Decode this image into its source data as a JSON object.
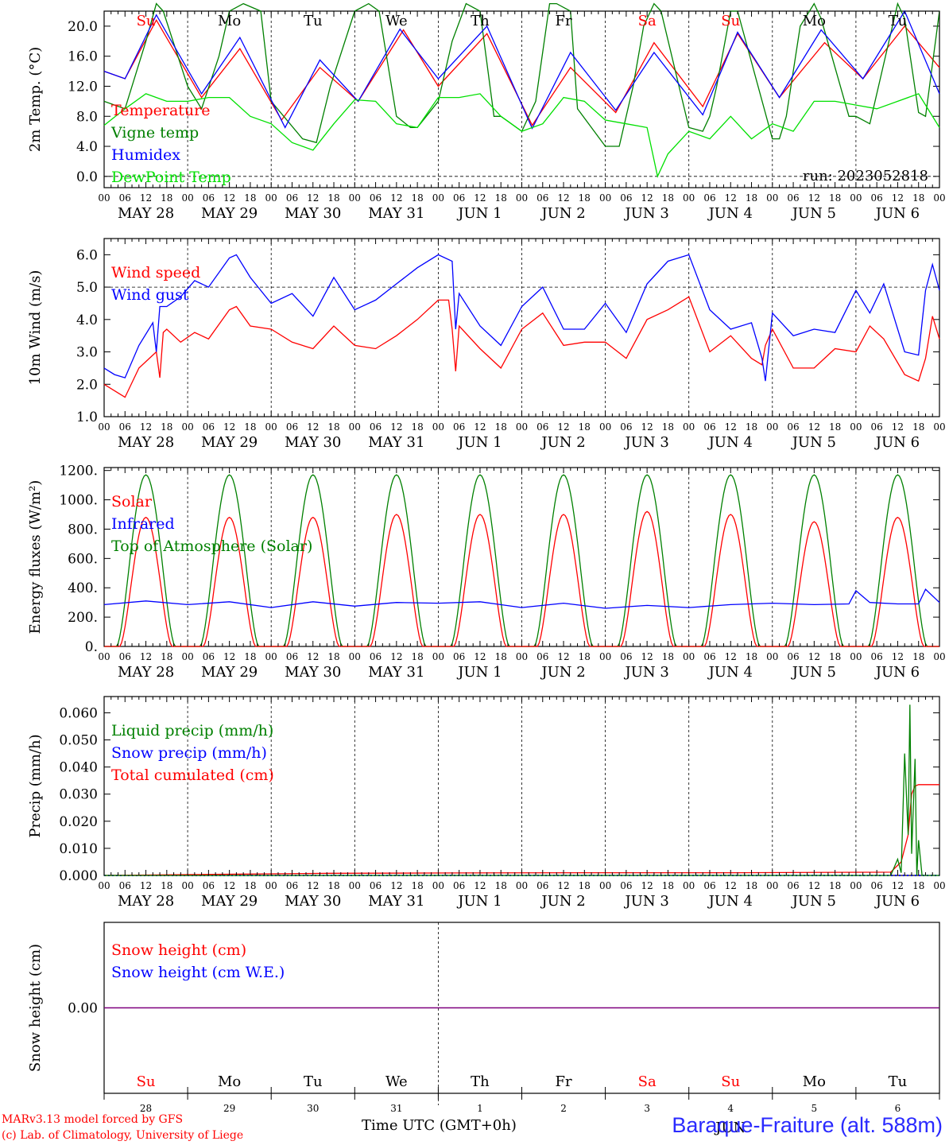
{
  "run_label": "run: 2023052818",
  "footer": {
    "model": "MARv3.13 model forced by GFS",
    "lab": "(c) Lab. of Climatology, University of Liege",
    "time_axis": "Time UTC (GMT+0h)",
    "station": "Baraque-Fraiture (alt. 588m)",
    "month": "JUN"
  },
  "days": {
    "weekday_labels": [
      "Su",
      "Mo",
      "Tu",
      "We",
      "Th",
      "Fr",
      "Sa",
      "Su",
      "Mo",
      "Tu"
    ],
    "weekend_flags": [
      true,
      false,
      false,
      false,
      false,
      false,
      true,
      true,
      false,
      false
    ],
    "date_labels": [
      "MAY 28",
      "MAY 29",
      "MAY 30",
      "MAY 31",
      "JUN  1",
      "JUN  2",
      "JUN  3",
      "JUN  4",
      "JUN  5",
      "JUN  6"
    ],
    "day_numbers": [
      "28",
      "29",
      "30",
      "31",
      "1",
      "2",
      "3",
      "4",
      "5",
      "6"
    ],
    "hour_ticks": [
      "00",
      "06",
      "12",
      "18"
    ],
    "end_hour": "00"
  },
  "colors": {
    "red": "#ff0000",
    "green_dark": "#008000",
    "blue": "#0000ff",
    "green_light": "#00e000",
    "purple": "#7f007f"
  },
  "chart_data": [
    {
      "type": "line",
      "ylabel": "2m Temp. (°C)",
      "ylim": [
        -1.5,
        22
      ],
      "yticks": [
        "0.0",
        "4.0",
        "8.0",
        "12.0",
        "16.0",
        "20.0"
      ],
      "reference_line": 0,
      "x_unit": "hours since 2023-05-28 00 UTC",
      "series": [
        {
          "name": "Temperature",
          "color": "red",
          "x": [
            0,
            6,
            15,
            28,
            39,
            51,
            62,
            73,
            86,
            96,
            110,
            123,
            134,
            147,
            158,
            172,
            182,
            194,
            207,
            218,
            230,
            240
          ],
          "y": [
            14,
            13,
            20.8,
            10.5,
            17,
            7.5,
            14.5,
            10,
            19.5,
            12,
            19,
            6.8,
            14.5,
            8.5,
            17.8,
            9.3,
            19,
            10.5,
            17.8,
            13,
            20,
            14.5
          ]
        },
        {
          "name": "Vigne temp",
          "color": "green_dark",
          "x": [
            0,
            3,
            6,
            12,
            15,
            17,
            24,
            28,
            33,
            36,
            40,
            45,
            48,
            57,
            61,
            65,
            72,
            76,
            79,
            84,
            88,
            90,
            96,
            100,
            104,
            108,
            112,
            114,
            120,
            124,
            128,
            130,
            134,
            136,
            144,
            148,
            152,
            155,
            158,
            160,
            168,
            172,
            174,
            176,
            180,
            182,
            192,
            194,
            196,
            200,
            204,
            206,
            214,
            216,
            220,
            224,
            228,
            230,
            234,
            236,
            240
          ],
          "y": [
            10,
            9.5,
            9,
            18,
            23,
            22,
            12,
            9,
            16,
            22,
            23,
            22,
            10,
            5,
            4.5,
            12,
            22,
            23,
            22,
            8,
            6.5,
            6.5,
            10,
            18,
            23,
            22,
            8,
            8,
            6,
            10,
            23,
            23,
            22,
            9,
            4,
            4,
            12,
            20,
            23,
            22,
            6.5,
            6,
            8,
            12,
            22,
            22,
            5,
            5,
            8,
            20,
            23,
            21,
            8,
            8,
            7,
            15,
            23,
            21,
            8.5,
            8,
            22
          ]
        },
        {
          "name": "Humidex",
          "color": "blue",
          "x": [
            0,
            6,
            15,
            28,
            39,
            52,
            62,
            73,
            85,
            96,
            110,
            123,
            134,
            147,
            158,
            172,
            182,
            194,
            206,
            218,
            230,
            240
          ],
          "y": [
            14,
            13,
            21.5,
            11,
            18.5,
            6.5,
            15.5,
            10,
            19.6,
            13,
            20,
            6.4,
            16.5,
            8.8,
            16.5,
            8.2,
            19.2,
            10.5,
            19.5,
            13,
            22,
            11
          ]
        },
        {
          "name": "DewPoint Temp",
          "color": "green_light",
          "x": [
            0,
            6,
            12,
            18,
            24,
            30,
            36,
            42,
            48,
            54,
            60,
            66,
            72,
            78,
            84,
            90,
            96,
            102,
            108,
            114,
            120,
            126,
            132,
            138,
            144,
            150,
            156,
            159,
            162,
            168,
            174,
            180,
            186,
            192,
            198,
            204,
            210,
            216,
            222,
            228,
            234,
            240
          ],
          "y": [
            6.8,
            9,
            11,
            10,
            10,
            10.5,
            10.5,
            8,
            7,
            4.5,
            3.5,
            7,
            10.2,
            10,
            7,
            6.5,
            10.5,
            10.5,
            11,
            8,
            6,
            7,
            10.5,
            10,
            7.5,
            7,
            6.5,
            0,
            3,
            6,
            5,
            8,
            5,
            7,
            6,
            10,
            10,
            9.5,
            9,
            10,
            11,
            6.5
          ]
        }
      ]
    },
    {
      "type": "line",
      "ylabel": "10m Wind (m/s)",
      "ylim": [
        1,
        6.5
      ],
      "yticks": [
        "1.0",
        "2.0",
        "3.0",
        "4.0",
        "5.0",
        "6.0"
      ],
      "reference_line": 5,
      "x_unit": "hours since 2023-05-28 00 UTC",
      "series": [
        {
          "name": "Wind speed",
          "color": "red",
          "x": [
            0,
            3,
            6,
            10,
            15,
            16,
            17,
            18,
            22,
            26,
            30,
            36,
            38,
            42,
            48,
            54,
            60,
            66,
            72,
            78,
            84,
            90,
            96,
            99,
            100,
            101,
            102,
            108,
            114,
            120,
            126,
            132,
            138,
            144,
            150,
            156,
            162,
            168,
            174,
            180,
            186,
            189,
            190,
            192,
            198,
            204,
            210,
            216,
            220,
            224,
            230,
            234,
            236,
            238,
            240
          ],
          "y": [
            2,
            1.8,
            1.6,
            2.5,
            3,
            2.2,
            3.6,
            3.7,
            3.3,
            3.6,
            3.4,
            4.3,
            4.4,
            3.8,
            3.7,
            3.3,
            3.1,
            3.8,
            3.2,
            3.1,
            3.5,
            4,
            4.6,
            4.6,
            3.7,
            2.4,
            3.8,
            3.1,
            2.5,
            3.7,
            4.2,
            3.2,
            3.3,
            3.3,
            2.8,
            4,
            4.3,
            4.7,
            3,
            3.5,
            2.8,
            2.6,
            3.2,
            3.7,
            2.5,
            2.5,
            3.1,
            3,
            3.8,
            3.4,
            2.3,
            2.1,
            2.8,
            4.1,
            3.4
          ]
        },
        {
          "name": "Wind gust",
          "color": "blue",
          "x": [
            0,
            3,
            6,
            10,
            14,
            15,
            16,
            18,
            22,
            26,
            30,
            36,
            38,
            42,
            48,
            54,
            60,
            66,
            72,
            78,
            84,
            90,
            96,
            100,
            101,
            102,
            108,
            114,
            120,
            126,
            132,
            138,
            144,
            150,
            156,
            162,
            168,
            174,
            180,
            186,
            189,
            190,
            192,
            198,
            204,
            210,
            216,
            220,
            224,
            230,
            234,
            236,
            238,
            240
          ],
          "y": [
            2.5,
            2.3,
            2.2,
            3.2,
            3.9,
            3,
            4.4,
            4.4,
            4.7,
            5.2,
            5,
            5.9,
            6,
            5.3,
            4.5,
            4.8,
            4.1,
            5.3,
            4.3,
            4.6,
            5.1,
            5.6,
            6,
            5.8,
            3.7,
            4.8,
            3.8,
            3.2,
            4.4,
            5,
            3.7,
            3.7,
            4.5,
            3.6,
            5.1,
            5.8,
            6,
            4.3,
            3.7,
            3.9,
            2.8,
            2.1,
            4.2,
            3.5,
            3.7,
            3.6,
            4.9,
            4.2,
            5.1,
            3,
            2.9,
            4.9,
            5.7,
            4.9
          ]
        }
      ]
    },
    {
      "type": "line",
      "ylabel": "Energy fluxes (W/m²)",
      "ylim": [
        0,
        1220
      ],
      "yticks": [
        "0.",
        "200.",
        "400.",
        "600.",
        "800.",
        "1000.",
        "1200."
      ],
      "x_unit": "hours since 2023-05-28 00 UTC",
      "series": [
        {
          "name": "Solar",
          "color": "red",
          "peaks": [
            880,
            880,
            880,
            900,
            900,
            900,
            920,
            900,
            850,
            880
          ]
        },
        {
          "name": "Infrared",
          "color": "blue",
          "x": [
            0,
            12,
            24,
            36,
            48,
            60,
            72,
            84,
            96,
            108,
            120,
            132,
            144,
            156,
            168,
            180,
            192,
            204,
            214,
            216,
            220,
            228,
            234,
            236,
            240
          ],
          "y": [
            285,
            310,
            285,
            305,
            265,
            305,
            275,
            300,
            295,
            305,
            265,
            295,
            260,
            280,
            265,
            285,
            295,
            285,
            290,
            380,
            300,
            290,
            290,
            390,
            300
          ]
        },
        {
          "name": "Top of Atmosphere (Solar)",
          "color": "green_dark",
          "peaks": [
            1170,
            1170,
            1170,
            1170,
            1170,
            1170,
            1170,
            1170,
            1170,
            1170
          ]
        }
      ]
    },
    {
      "type": "line",
      "ylabel": "Precip (mm/h)",
      "ylim": [
        0,
        0.066
      ],
      "yticks": [
        "0.000",
        "0.010",
        "0.020",
        "0.030",
        "0.040",
        "0.050",
        "0.060"
      ],
      "x_unit": "hours since 2023-05-28 00 UTC",
      "series": [
        {
          "name": "Liquid precip (mm/h)",
          "color": "green_dark",
          "x": [
            0,
            226,
            228,
            229,
            230,
            231,
            231.5,
            232,
            233,
            233.5,
            234,
            235,
            236,
            240
          ],
          "y": [
            0,
            0,
            0.006,
            0.001,
            0.045,
            0.015,
            0.063,
            0.008,
            0.043,
            0,
            0.013,
            0,
            0,
            0
          ]
        },
        {
          "name": "Snow precip (mm/h)",
          "color": "blue",
          "x": [
            0,
            240
          ],
          "y": [
            0,
            0
          ]
        },
        {
          "name": "Total cumulated (cm)",
          "color": "red",
          "x": [
            0,
            65,
            100,
            140,
            180,
            226,
            229,
            231,
            232,
            233,
            234,
            240
          ],
          "y": [
            0,
            0.0008,
            0.0009,
            0.001,
            0.001,
            0.0012,
            0.005,
            0.015,
            0.03,
            0.033,
            0.0335,
            0.0335
          ]
        }
      ]
    },
    {
      "type": "line",
      "ylabel": "Snow height (cm)",
      "ylim": [
        -0.5,
        0.5
      ],
      "yticks": [
        "0.00"
      ],
      "x_unit": "hours since 2023-05-28 00 UTC",
      "series": [
        {
          "name": "Snow height (cm)",
          "color": "red",
          "x": [
            0,
            240
          ],
          "y": [
            0,
            0
          ]
        },
        {
          "name": "Snow height (cm W.E.)",
          "color": "blue",
          "x": [
            0,
            240
          ],
          "y": [
            0,
            0
          ]
        }
      ]
    }
  ]
}
